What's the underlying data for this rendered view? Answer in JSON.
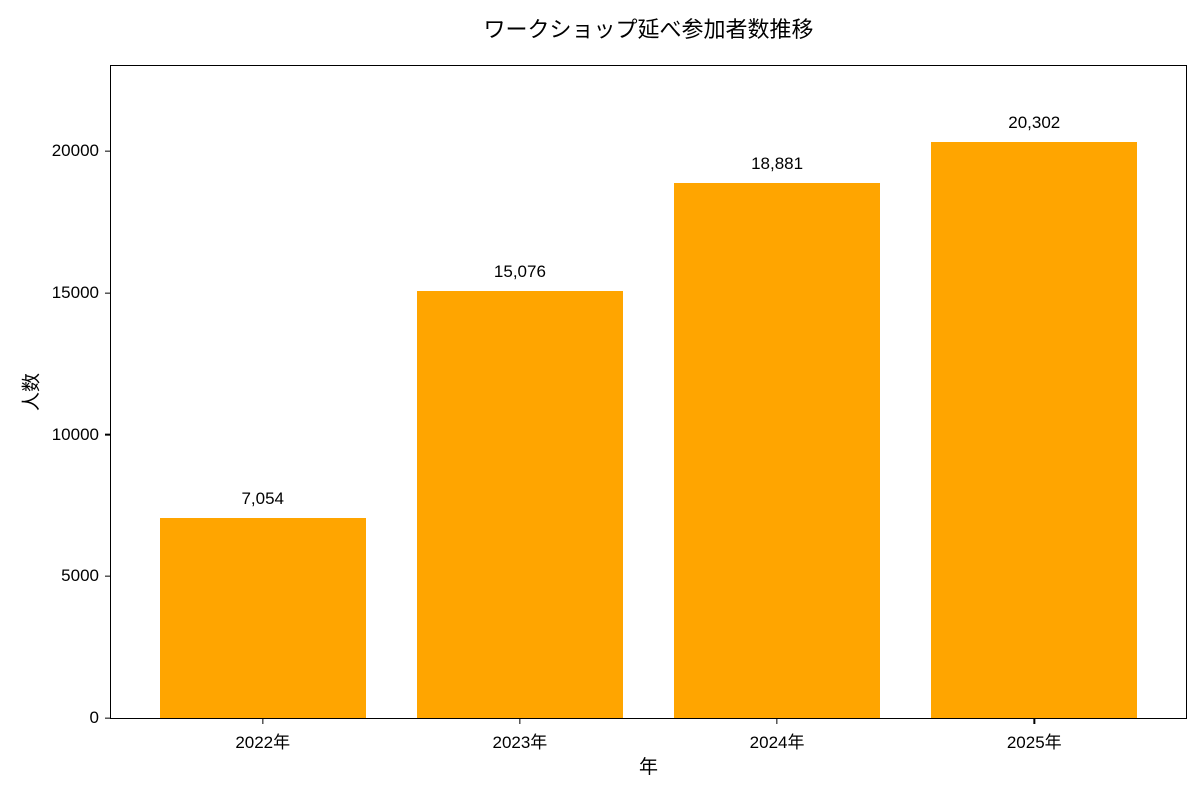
{
  "chart_data": {
    "type": "bar",
    "title": "ワークショップ延べ参加者数推移",
    "xlabel": "年",
    "ylabel": "人数",
    "categories": [
      "2022年",
      "2023年",
      "2024年",
      "2025年"
    ],
    "values": [
      7054,
      15076,
      18881,
      20302
    ],
    "value_labels": [
      "7,054",
      "15,076",
      "18,881",
      "20,302"
    ],
    "bar_color": "#FFA500",
    "bar_width": 0.8,
    "ylim": [
      0,
      23000
    ],
    "yticks": [
      0,
      5000,
      10000,
      15000,
      20000
    ],
    "ytick_labels": [
      "0",
      "5000",
      "10000",
      "15000",
      "20000"
    ],
    "grid": false,
    "legend_position": "none",
    "text_color": "#000000",
    "spine_color": "#000000",
    "background_color": "#ffffff"
  }
}
